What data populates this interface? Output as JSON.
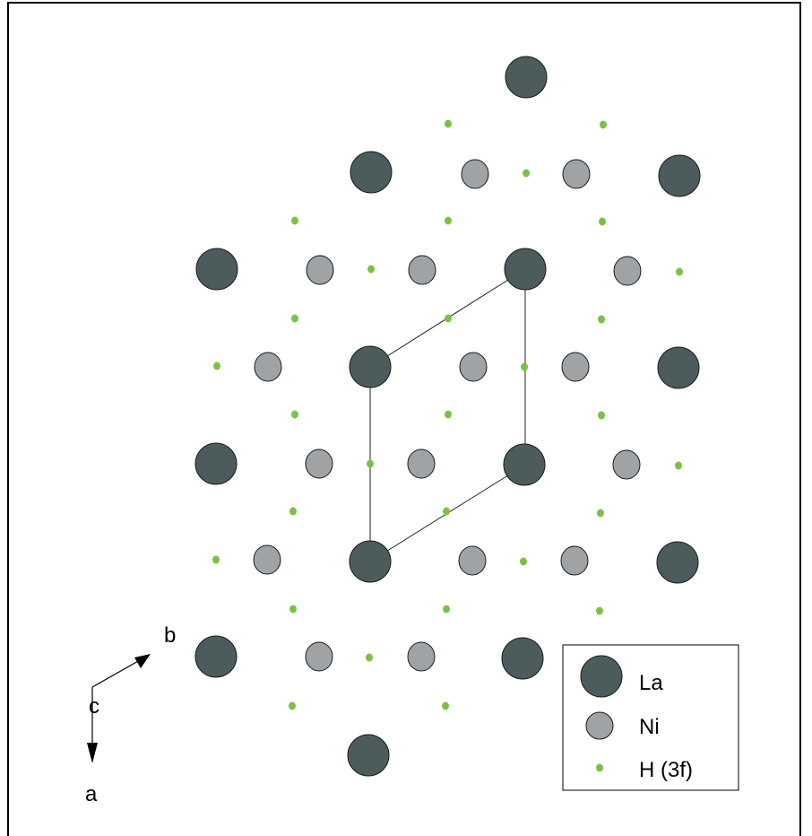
{
  "colors": {
    "la_fill": "#4c5c5c",
    "ni_fill": "#9fa3a6",
    "h_fill": "#7cc242",
    "background": "#ffffff",
    "frame": "#000000"
  },
  "legend": {
    "items": [
      {
        "label": "La",
        "kind": "la"
      },
      {
        "label": "Ni",
        "kind": "ni"
      },
      {
        "label": "H (3f)",
        "kind": "h"
      }
    ]
  },
  "axes": {
    "b_label": "b",
    "c_label": "c",
    "a_label": "a"
  }
}
